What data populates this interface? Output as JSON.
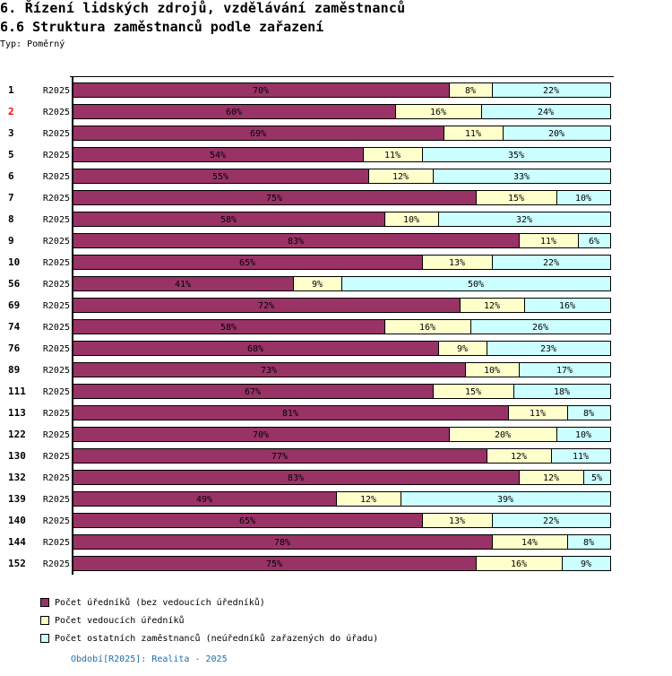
{
  "header": {
    "title": "6. Řízení lidských zdrojů, vzdělávání zaměstnanců",
    "subtitle": "6.6 Struktura zaměstnanců podle zařazení",
    "type_label": "Typ: Poměrný"
  },
  "colors": {
    "series_0": "#993366",
    "series_1": "#ffffcc",
    "series_2": "#ccffff",
    "highlight_label": "#ff0000",
    "period_text": "#1f6fa8"
  },
  "chart_data": {
    "type": "bar",
    "orientation": "horizontal",
    "stacked": true,
    "normalized": true,
    "title": "6.6 Struktura zaměstnanců podle zařazení",
    "xlabel": "",
    "ylabel": "",
    "xlim": [
      0,
      100
    ],
    "grid": false,
    "legend_position": "bottom-left",
    "categories": [
      "1",
      "2",
      "3",
      "5",
      "6",
      "7",
      "8",
      "9",
      "10",
      "56",
      "69",
      "74",
      "76",
      "89",
      "111",
      "113",
      "122",
      "130",
      "132",
      "139",
      "140",
      "144",
      "152"
    ],
    "highlighted_categories": [
      "2"
    ],
    "period_labels": [
      "R2025",
      "R2025",
      "R2025",
      "R2025",
      "R2025",
      "R2025",
      "R2025",
      "R2025",
      "R2025",
      "R2025",
      "R2025",
      "R2025",
      "R2025",
      "R2025",
      "R2025",
      "R2025",
      "R2025",
      "R2025",
      "R2025",
      "R2025",
      "R2025",
      "R2025",
      "R2025"
    ],
    "series": [
      {
        "name": "Počet úředníků (bez vedoucích úředníků)",
        "values": [
          70,
          60,
          69,
          54,
          55,
          75,
          58,
          83,
          65,
          41,
          72,
          58,
          68,
          73,
          67,
          81,
          70,
          77,
          83,
          49,
          65,
          78,
          75
        ]
      },
      {
        "name": "Počet vedoucích úředníků",
        "values": [
          8,
          16,
          11,
          11,
          12,
          15,
          10,
          11,
          13,
          9,
          12,
          16,
          9,
          10,
          15,
          11,
          20,
          12,
          12,
          12,
          13,
          14,
          16
        ]
      },
      {
        "name": "Počet ostatních zaměstnanců (neúředníků zařazených do úřadu)",
        "values": [
          22,
          24,
          20,
          35,
          33,
          10,
          32,
          6,
          22,
          50,
          16,
          26,
          23,
          17,
          18,
          8,
          10,
          11,
          5,
          39,
          22,
          8,
          9
        ]
      }
    ],
    "value_suffix": "%"
  },
  "legend": {
    "items": [
      {
        "label": "Počet úředníků (bez vedoucích úředníků)"
      },
      {
        "label": "Počet vedoucích úředníků"
      },
      {
        "label": "Počet ostatních zaměstnanců (neúředníků zařazených do úřadu)"
      }
    ]
  },
  "footer": {
    "period": "Období[R2025]: Realita - 2025"
  }
}
